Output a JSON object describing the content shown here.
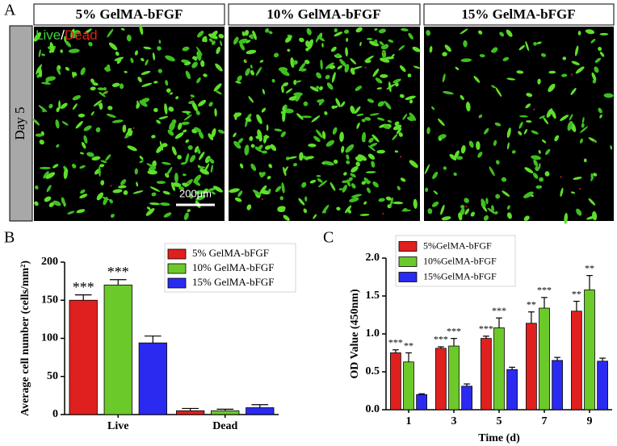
{
  "figure": {
    "panel_labels": [
      "A",
      "B",
      "C"
    ],
    "image_titles": [
      "5% GelMA-bFGF",
      "10% GelMA-bFGF",
      "15% GelMA-bFGF"
    ],
    "row_label": "Day 5",
    "stain_live": "Live",
    "stain_separator": "/",
    "stain_dead": "Dead",
    "scale_bar": "200μm"
  },
  "chart_data": [
    {
      "type": "bar",
      "ylabel": "Average cell number (cells/mm²)",
      "categories": [
        "Live",
        "Dead"
      ],
      "ylim": [
        0,
        200
      ],
      "yticks": [
        0,
        50,
        100,
        150,
        200
      ],
      "legend": "top-right",
      "series": [
        {
          "name": "5% GelMA-bFGF",
          "color": "#e0201f",
          "values": [
            150,
            5
          ],
          "errors": [
            7,
            3
          ],
          "significance": [
            "***",
            null
          ]
        },
        {
          "name": "10% GelMA-bFGF",
          "color": "#6cc92a",
          "values": [
            170,
            5
          ],
          "errors": [
            7,
            2
          ],
          "significance": [
            "***",
            null
          ]
        },
        {
          "name": "15% GelMA-bFGF",
          "color": "#2a2af0",
          "values": [
            94,
            9
          ],
          "errors": [
            9,
            4
          ],
          "significance": [
            null,
            null
          ]
        }
      ]
    },
    {
      "type": "bar",
      "xlabel": "Time (d)",
      "ylabel": "OD Value (450nm)",
      "categories": [
        1,
        3,
        5,
        7,
        9
      ],
      "ylim": [
        0,
        2.0
      ],
      "yticks": [
        {
          "value": 0,
          "label": "0.0"
        },
        0.5,
        {
          "value": 1,
          "label": "1.0"
        },
        1.5,
        {
          "value": 2,
          "label": "2.0"
        }
      ],
      "legend": "top-left",
      "series": [
        {
          "name": "5%GelMA-bFGF",
          "color": "#e0201f",
          "values": [
            0.75,
            0.81,
            0.94,
            1.14,
            1.3
          ],
          "errors": [
            0.04,
            0.02,
            0.03,
            0.15,
            0.13
          ],
          "significance": [
            "***",
            "***",
            "***",
            "**",
            "**"
          ]
        },
        {
          "name": "10%GelMA-bFGF",
          "color": "#6cc92a",
          "values": [
            0.63,
            0.84,
            1.08,
            1.34,
            1.58
          ],
          "errors": [
            0.12,
            0.1,
            0.13,
            0.14,
            0.19
          ],
          "significance": [
            "**",
            "***",
            "***",
            "***",
            "**"
          ]
        },
        {
          "name": "15%GelMA-bFGF",
          "color": "#2a2af0",
          "values": [
            0.2,
            0.31,
            0.53,
            0.65,
            0.64
          ],
          "errors": [
            0.01,
            0.03,
            0.03,
            0.04,
            0.04
          ],
          "significance": [
            null,
            null,
            null,
            null,
            null
          ]
        }
      ]
    }
  ]
}
